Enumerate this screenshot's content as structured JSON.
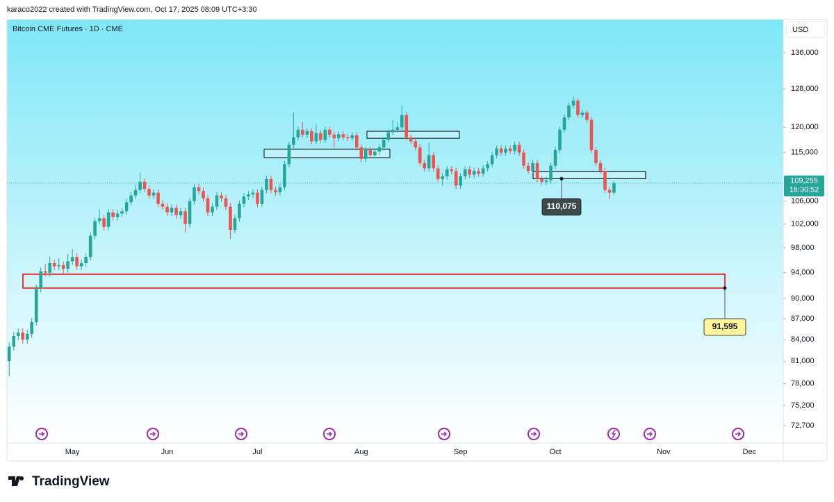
{
  "chart_data": {
    "type": "candlestick",
    "attribution": "karaco2022 created with TradingView.com, Oct 17, 2025 08:09 UTC+3:30",
    "title": "Bitcoin CME Futures · 1D · CME",
    "currency": "USD",
    "brand": "TradingView",
    "log_scale": true,
    "grid": false,
    "up_color": "#26a69a",
    "down_color": "#ef5350",
    "ylim": [
      70600,
      143500
    ],
    "yticks": [
      {
        "value": 72700,
        "label": "72,700"
      },
      {
        "value": 75200,
        "label": "75,200"
      },
      {
        "value": 78000,
        "label": "78,000"
      },
      {
        "value": 81000,
        "label": "81,000"
      },
      {
        "value": 84000,
        "label": "84,000"
      },
      {
        "value": 87000,
        "label": "87,000"
      },
      {
        "value": 90000,
        "label": "90,000"
      },
      {
        "value": 94000,
        "label": "94,000"
      },
      {
        "value": 98000,
        "label": "98,000"
      },
      {
        "value": 102000,
        "label": "102,000"
      },
      {
        "value": 106000,
        "label": "106,000"
      },
      {
        "value": 115000,
        "label": "115,000"
      },
      {
        "value": 120000,
        "label": "120,000"
      },
      {
        "value": 128000,
        "label": "128,000"
      },
      {
        "value": 136000,
        "label": "136,000"
      }
    ],
    "categories": [
      null,
      null,
      null,
      null,
      null,
      null,
      null,
      null,
      null,
      null,
      null,
      null,
      null,
      null,
      "May",
      null,
      null,
      null,
      null,
      null,
      null,
      null,
      null,
      null,
      null,
      null,
      null,
      null,
      null,
      null,
      null,
      null,
      null,
      null,
      null,
      "Jun",
      null,
      null,
      null,
      null,
      null,
      null,
      null,
      null,
      null,
      null,
      null,
      null,
      null,
      null,
      null,
      null,
      null,
      null,
      null,
      "Jul",
      null,
      null,
      null,
      null,
      null,
      null,
      null,
      null,
      null,
      null,
      null,
      null,
      null,
      null,
      null,
      null,
      null,
      null,
      null,
      null,
      null,
      null,
      "Aug",
      null,
      null,
      null,
      null,
      null,
      null,
      null,
      null,
      null,
      null,
      null,
      null,
      null,
      null,
      null,
      null,
      null,
      null,
      null,
      null,
      null,
      "Sep",
      null,
      null,
      null,
      null,
      null,
      null,
      null,
      null,
      null,
      null,
      null,
      null,
      null,
      null,
      null,
      null,
      null,
      null,
      null,
      null,
      "Oct",
      null,
      null,
      null,
      null,
      null,
      null,
      null,
      null,
      null,
      null,
      null,
      null,
      null,
      null,
      null,
      null,
      null,
      null,
      null,
      null,
      null,
      null,
      null,
      "Nov",
      null,
      null,
      null,
      null,
      null,
      null,
      null,
      null,
      null,
      null,
      null,
      null,
      null,
      null,
      null,
      null,
      null,
      null,
      "Dec",
      null,
      null,
      null,
      null,
      null,
      null,
      null
    ],
    "open": [
      81000,
      83000,
      84500,
      85000,
      84000,
      84800,
      86500,
      91500,
      94200,
      94000,
      95500,
      95000,
      95200,
      94600,
      95800,
      96500,
      95000,
      95500,
      96500,
      100000,
      102500,
      103000,
      101500,
      104000,
      103200,
      103800,
      104200,
      105800,
      107000,
      108000,
      109500,
      108200,
      107000,
      107500,
      105500,
      105000,
      104000,
      104800,
      103500,
      104200,
      102000,
      106000,
      108500,
      107800,
      106500,
      104000,
      105000,
      107000,
      106500,
      105000,
      101000,
      103000,
      105500,
      106800,
      107200,
      107500,
      105500,
      108000,
      110000,
      108000,
      107600,
      108500,
      112800,
      116500,
      118000,
      119500,
      118500,
      119200,
      117200,
      118800,
      117500,
      119500,
      118500,
      117800,
      118600,
      118000,
      117800,
      118400,
      116000,
      113800,
      115500,
      114500,
      115200,
      116000,
      117500,
      119000,
      119500,
      120000,
      122500,
      118000,
      117200,
      116000,
      113000,
      112000,
      114500,
      112000,
      110000,
      110500,
      111800,
      111500,
      108800,
      110500,
      111800,
      110800,
      111500,
      111000,
      112000,
      112800,
      114500,
      115800,
      115000,
      115800,
      115300,
      116500,
      115000,
      112500,
      111500,
      113000,
      110000,
      109500,
      109800,
      112500,
      115500,
      119500,
      122000,
      124500,
      125500,
      122500,
      123000,
      121500,
      115500,
      113000,
      111500,
      108000,
      107500,
      null,
      null,
      null,
      null,
      null,
      null,
      null,
      null,
      null,
      null,
      null,
      null,
      null,
      null,
      null,
      null,
      null,
      null,
      null,
      null,
      null,
      null,
      null,
      null,
      null,
      null,
      null,
      null,
      null,
      null,
      null,
      null,
      null,
      null,
      null,
      null,
      null
    ],
    "high": [
      83600,
      85100,
      85600,
      85600,
      85400,
      87100,
      92100,
      94800,
      95400,
      96600,
      96100,
      96300,
      95800,
      97000,
      97800,
      97100,
      96100,
      97100,
      100600,
      103100,
      104500,
      103600,
      104600,
      104600,
      104400,
      104800,
      106400,
      107600,
      109000,
      111200,
      110100,
      108800,
      108100,
      108100,
      106100,
      105600,
      105400,
      105400,
      104800,
      104800,
      106600,
      109100,
      109100,
      108400,
      107100,
      105600,
      107600,
      107600,
      107100,
      105600,
      103600,
      106100,
      107400,
      107800,
      108100,
      108100,
      108600,
      110600,
      110600,
      108600,
      109100,
      113400,
      117100,
      123000,
      120100,
      121000,
      119800,
      119800,
      120500,
      119400,
      120100,
      120100,
      119100,
      119200,
      119200,
      118600,
      119000,
      119000,
      116600,
      116100,
      116100,
      115800,
      116600,
      118100,
      119600,
      121500,
      121000,
      124500,
      123100,
      118600,
      117800,
      116600,
      113600,
      117000,
      115100,
      112600,
      111100,
      112400,
      112400,
      112100,
      111100,
      112400,
      112400,
      112100,
      112100,
      112600,
      113400,
      115100,
      116400,
      116400,
      116400,
      116400,
      117100,
      117100,
      115600,
      113100,
      113600,
      113600,
      110600,
      110400,
      113100,
      116100,
      120100,
      122600,
      125100,
      126300,
      126100,
      123600,
      123600,
      122100,
      116100,
      113600,
      112100,
      108600,
      109600,
      null,
      null,
      null,
      null,
      null,
      null,
      null,
      null,
      null,
      null,
      null,
      null,
      null,
      null,
      null,
      null,
      null,
      null,
      null,
      null,
      null,
      null,
      null,
      null,
      null,
      null,
      null,
      null,
      null,
      null,
      null,
      null,
      null,
      null,
      null,
      null,
      null
    ],
    "low": [
      79000,
      82400,
      83900,
      83400,
      83400,
      84200,
      86000,
      90900,
      93400,
      93400,
      94400,
      94400,
      93800,
      94000,
      95200,
      94400,
      94400,
      94900,
      95900,
      99400,
      101900,
      100900,
      100900,
      102600,
      102600,
      103200,
      103600,
      105200,
      106400,
      107400,
      107600,
      106400,
      106400,
      104900,
      104400,
      103400,
      103400,
      102900,
      102900,
      100500,
      101400,
      105400,
      107200,
      105900,
      103400,
      103400,
      104400,
      105900,
      104400,
      99500,
      100400,
      102400,
      104900,
      106200,
      106600,
      104900,
      104900,
      107400,
      107400,
      107000,
      107000,
      107900,
      112200,
      115900,
      117400,
      117900,
      117900,
      116600,
      116600,
      116900,
      116900,
      117900,
      116000,
      117200,
      117400,
      117200,
      117200,
      115400,
      113200,
      113200,
      113900,
      113900,
      114600,
      115400,
      116900,
      118400,
      118900,
      119400,
      117400,
      116600,
      115400,
      112400,
      111400,
      111400,
      111400,
      109400,
      108800,
      109900,
      110900,
      108200,
      108200,
      109900,
      110200,
      110200,
      110400,
      110400,
      111400,
      112200,
      113900,
      114400,
      114400,
      114700,
      114700,
      114400,
      111900,
      110900,
      110900,
      109400,
      108900,
      108900,
      109200,
      111900,
      114900,
      118900,
      121400,
      123900,
      121900,
      121900,
      120900,
      114900,
      112400,
      110900,
      107400,
      106300,
      107100,
      null,
      null,
      null,
      null,
      null,
      null,
      null,
      null,
      null,
      null,
      null,
      null,
      null,
      null,
      null,
      null,
      null,
      null,
      null,
      null,
      null,
      null,
      null,
      null,
      null,
      null,
      null,
      null,
      null,
      null,
      null,
      null,
      null,
      null,
      null,
      null,
      null
    ],
    "close": [
      83000,
      84500,
      85000,
      84000,
      84800,
      86500,
      91500,
      94200,
      94000,
      95500,
      95000,
      95200,
      94600,
      95800,
      96500,
      95000,
      95500,
      96500,
      100000,
      102500,
      103000,
      101500,
      104000,
      103200,
      103800,
      104200,
      105800,
      107000,
      108000,
      109500,
      108200,
      107000,
      107500,
      105500,
      105000,
      104000,
      104800,
      103500,
      104200,
      102000,
      106000,
      108500,
      107800,
      106500,
      104000,
      105000,
      107000,
      106500,
      105000,
      101000,
      103000,
      105500,
      106800,
      107200,
      107500,
      105500,
      108000,
      110000,
      108000,
      107600,
      108500,
      112800,
      116500,
      118000,
      119500,
      118500,
      119200,
      117200,
      118800,
      117500,
      119500,
      118500,
      117800,
      118600,
      118000,
      117800,
      118400,
      116000,
      113800,
      115500,
      114500,
      115200,
      116000,
      117500,
      119000,
      119500,
      120000,
      122500,
      118000,
      117200,
      116000,
      113000,
      112000,
      114500,
      112000,
      110000,
      110500,
      111800,
      111500,
      108800,
      110500,
      111800,
      110800,
      111500,
      111000,
      112000,
      112800,
      114500,
      115800,
      115000,
      115800,
      115300,
      116500,
      115000,
      112500,
      111500,
      113000,
      110000,
      109500,
      109800,
      112500,
      115500,
      119500,
      122000,
      124500,
      125500,
      122500,
      123000,
      121500,
      115500,
      113000,
      111500,
      108000,
      107500,
      109255,
      null,
      null,
      null,
      null,
      null,
      null,
      null,
      null,
      null,
      null,
      null,
      null,
      null,
      null,
      null,
      null,
      null,
      null,
      null,
      null,
      null,
      null,
      null,
      null,
      null,
      null,
      null,
      null,
      null,
      null,
      null,
      null,
      null,
      null,
      null,
      null,
      null
    ],
    "last_price": {
      "value": 109255,
      "label": "109,255",
      "countdown": "16:30:52",
      "color": "#26a69a"
    },
    "zones": [
      {
        "low": 91595,
        "high": 93750,
        "color": "#e53935"
      },
      {
        "low": 114040,
        "high": 115650,
        "color": "#2a2e39"
      },
      {
        "low": 117800,
        "high": 119200,
        "color": "#2a2e39"
      },
      {
        "low": 110075,
        "high": 111400,
        "color": "#131722"
      }
    ],
    "annotations": [
      {
        "label": "110,075",
        "value": 110075,
        "color": "#3d4a4a",
        "text_color": "#ffffff"
      },
      {
        "label": "91,595",
        "value": 91595,
        "color": "#fff59d",
        "text_color": "#131722"
      }
    ]
  }
}
